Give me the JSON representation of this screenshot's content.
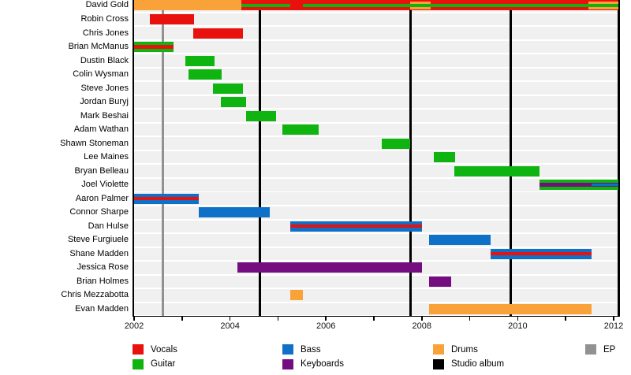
{
  "chart_data": {
    "type": "gantt-timeline",
    "description": "Band members timeline (instruments over years with release lines)",
    "x_axis": {
      "start_year": 2002,
      "end_year": 2012,
      "tick_years": [
        2002,
        2003,
        2004,
        2005,
        2006,
        2007,
        2008,
        2009,
        2010,
        2011,
        2012
      ],
      "labels": [
        "2002",
        "2004",
        "2006",
        "2008",
        "2010",
        "2012"
      ],
      "label_years": [
        2002,
        2004,
        2006,
        2008,
        2010,
        2012
      ]
    },
    "colors": {
      "vocals": "#e8110d",
      "guitar": "#10b410",
      "bass": "#0f70c8",
      "keyboards": "#740d80",
      "drums": "#f9a23a",
      "album": "#000000",
      "ep": "#919191",
      "row_band": "#f0f0f0",
      "background": "#ffffff"
    },
    "release_lines": [
      {
        "kind": "ep",
        "year": 2002.6
      },
      {
        "kind": "album",
        "year": 2004.62
      },
      {
        "kind": "album",
        "year": 2007.77
      },
      {
        "kind": "album",
        "year": 2009.86
      },
      {
        "kind": "album",
        "year": 2012.1
      }
    ],
    "members": [
      {
        "name": "David Gold",
        "bars": [
          {
            "c": "vocals",
            "f": 2002.0,
            "t": 2012.1,
            "k": "main"
          },
          {
            "c": "drums",
            "f": 2002.0,
            "t": 2004.24,
            "k": "full"
          },
          {
            "c": "drums",
            "f": 2007.75,
            "t": 2008.18,
            "k": "inset"
          },
          {
            "c": "drums",
            "f": 2011.47,
            "t": 2012.1,
            "k": "inset"
          },
          {
            "c": "guitar",
            "f": 2004.24,
            "t": 2005.26,
            "k": "stripe"
          },
          {
            "c": "guitar",
            "f": 2005.52,
            "t": 2012.1,
            "k": "stripe"
          }
        ]
      },
      {
        "name": "Robin Cross",
        "bars": [
          {
            "c": "vocals",
            "f": 2002.33,
            "t": 2003.25,
            "k": "main"
          }
        ]
      },
      {
        "name": "Chris Jones",
        "bars": [
          {
            "c": "vocals",
            "f": 2003.23,
            "t": 2004.27,
            "k": "main"
          }
        ]
      },
      {
        "name": "Brian McManus",
        "bars": [
          {
            "c": "guitar",
            "f": 2002.0,
            "t": 2002.82,
            "k": "main"
          },
          {
            "c": "vocals",
            "f": 2002.0,
            "t": 2002.82,
            "k": "stripe"
          }
        ]
      },
      {
        "name": "Dustin Black",
        "bars": [
          {
            "c": "guitar",
            "f": 2003.07,
            "t": 2003.68,
            "k": "main"
          }
        ]
      },
      {
        "name": "Colin Wysman",
        "bars": [
          {
            "c": "guitar",
            "f": 2003.13,
            "t": 2003.83,
            "k": "main"
          }
        ]
      },
      {
        "name": "Steve Jones",
        "bars": [
          {
            "c": "guitar",
            "f": 2003.64,
            "t": 2004.27,
            "k": "main"
          }
        ]
      },
      {
        "name": "Jordan Buryj",
        "bars": [
          {
            "c": "guitar",
            "f": 2003.81,
            "t": 2004.34,
            "k": "main"
          }
        ]
      },
      {
        "name": "Mark Beshai",
        "bars": [
          {
            "c": "guitar",
            "f": 2004.34,
            "t": 2004.96,
            "k": "main"
          }
        ]
      },
      {
        "name": "Adam Wathan",
        "bars": [
          {
            "c": "guitar",
            "f": 2005.09,
            "t": 2005.85,
            "k": "main"
          }
        ]
      },
      {
        "name": "Shawn Stoneman",
        "bars": [
          {
            "c": "guitar",
            "f": 2007.16,
            "t": 2007.76,
            "k": "main"
          }
        ]
      },
      {
        "name": "Lee Maines",
        "bars": [
          {
            "c": "guitar",
            "f": 2008.25,
            "t": 2008.69,
            "k": "main"
          }
        ]
      },
      {
        "name": "Bryan Belleau",
        "bars": [
          {
            "c": "guitar",
            "f": 2008.68,
            "t": 2010.45,
            "k": "main"
          }
        ]
      },
      {
        "name": "Joel Violette",
        "bars": [
          {
            "c": "guitar",
            "f": 2010.45,
            "t": 2012.1,
            "k": "main"
          },
          {
            "c": "keyboards",
            "f": 2010.45,
            "t": 2012.1,
            "k": "stripeW"
          },
          {
            "c": "bass",
            "f": 2011.54,
            "t": 2012.1,
            "k": "stripeN"
          }
        ]
      },
      {
        "name": "Aaron Palmer",
        "bars": [
          {
            "c": "bass",
            "f": 2002.0,
            "t": 2003.35,
            "k": "main"
          },
          {
            "c": "vocals",
            "f": 2002.0,
            "t": 2003.35,
            "k": "stripe"
          }
        ]
      },
      {
        "name": "Connor Sharpe",
        "bars": [
          {
            "c": "bass",
            "f": 2003.35,
            "t": 2004.83,
            "k": "main"
          }
        ]
      },
      {
        "name": "Dan Hulse",
        "bars": [
          {
            "c": "bass",
            "f": 2005.26,
            "t": 2008.0,
            "k": "main"
          },
          {
            "c": "vocals",
            "f": 2005.26,
            "t": 2008.0,
            "k": "stripe"
          }
        ]
      },
      {
        "name": "Steve Furgiuele",
        "bars": [
          {
            "c": "bass",
            "f": 2008.15,
            "t": 2009.43,
            "k": "main"
          }
        ]
      },
      {
        "name": "Shane Madden",
        "bars": [
          {
            "c": "bass",
            "f": 2009.43,
            "t": 2011.54,
            "k": "main"
          },
          {
            "c": "vocals",
            "f": 2009.43,
            "t": 2011.54,
            "k": "stripe"
          }
        ]
      },
      {
        "name": "Jessica Rose",
        "bars": [
          {
            "c": "keyboards",
            "f": 2004.15,
            "t": 2008.0,
            "k": "main"
          }
        ]
      },
      {
        "name": "Brian Holmes",
        "bars": [
          {
            "c": "keyboards",
            "f": 2008.15,
            "t": 2008.61,
            "k": "main"
          }
        ]
      },
      {
        "name": "Chris Mezzabotta",
        "bars": [
          {
            "c": "drums",
            "f": 2005.26,
            "t": 2005.52,
            "k": "main"
          }
        ]
      },
      {
        "name": "Evan Madden",
        "bars": [
          {
            "c": "drums",
            "f": 2008.15,
            "t": 2011.54,
            "k": "main"
          }
        ]
      }
    ],
    "legend": {
      "columns": [
        {
          "items": [
            {
              "color_key": "vocals",
              "label": "Vocals"
            },
            {
              "color_key": "guitar",
              "label": "Guitar"
            }
          ]
        },
        {
          "items": [
            {
              "color_key": "bass",
              "label": "Bass"
            },
            {
              "color_key": "keyboards",
              "label": "Keyboards"
            }
          ]
        },
        {
          "items": [
            {
              "color_key": "drums",
              "label": "Drums"
            },
            {
              "color_key": "album",
              "label": "Studio album"
            }
          ]
        },
        {
          "items": [
            {
              "color_key": "ep",
              "label": "EP"
            }
          ]
        }
      ]
    }
  }
}
